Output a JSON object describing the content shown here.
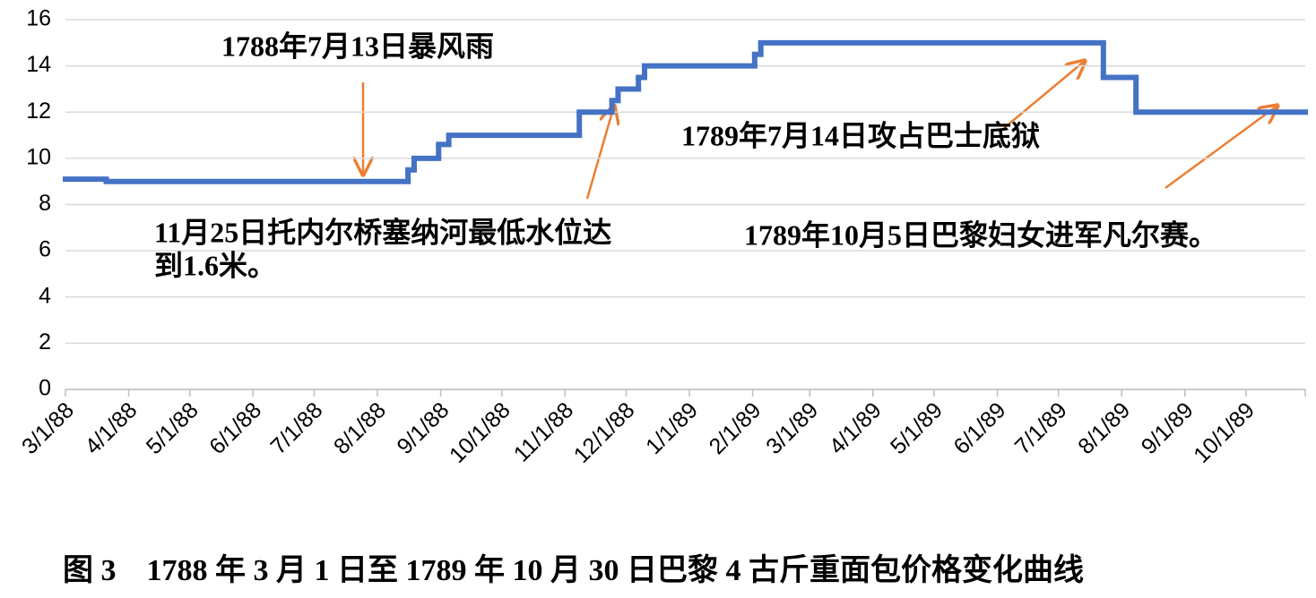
{
  "chart_data": {
    "type": "line",
    "caption": "图 3　1788 年 3 月 1 日至 1789 年 10 月 30 日巴黎 4 古斤重面包价格变化曲线",
    "x": [
      "3/1/88",
      "3/21/88",
      "8/16/88",
      "8/19/88",
      "8/31/88",
      "9/5/88",
      "11/8/88",
      "11/24/88",
      "11/27/88",
      "12/7/88",
      "12/10/88",
      "2/2/89",
      "2/5/89",
      "7/23/89",
      "8/8/89"
    ],
    "series": [
      {
        "color": "#4472c4",
        "values": [
          9.1,
          9.0,
          9.5,
          10.0,
          10.6,
          11.0,
          12.0,
          12.5,
          13.0,
          13.5,
          14.0,
          14.5,
          15.0,
          13.5,
          12.0
        ]
      }
    ],
    "xlim": [
      "3/1/88",
      "10/30/89"
    ],
    "xticks": [
      "3/1/88",
      "4/1/88",
      "5/1/88",
      "6/1/88",
      "7/1/88",
      "8/1/88",
      "9/1/88",
      "10/1/88",
      "11/1/88",
      "12/1/88",
      "1/1/89",
      "2/1/89",
      "3/1/89",
      "4/1/89",
      "5/1/89",
      "6/1/89",
      "7/1/89",
      "8/1/89",
      "9/1/89",
      "10/1/89"
    ],
    "ylim": [
      0,
      16
    ],
    "yticks": [
      0,
      2,
      4,
      6,
      8,
      10,
      12,
      14,
      16
    ],
    "grid": true,
    "annotations": [
      {
        "lines": [
          "1788年7月13日暴风雨"
        ]
      },
      {
        "lines": [
          "11月25日托内尔桥塞纳河最低水位达",
          "到1.6米。"
        ]
      },
      {
        "lines": [
          "1789年7月14日攻占巴士底狱"
        ]
      },
      {
        "lines": [
          "1789年10月5日巴黎妇女进军凡尔赛。"
        ]
      }
    ]
  }
}
